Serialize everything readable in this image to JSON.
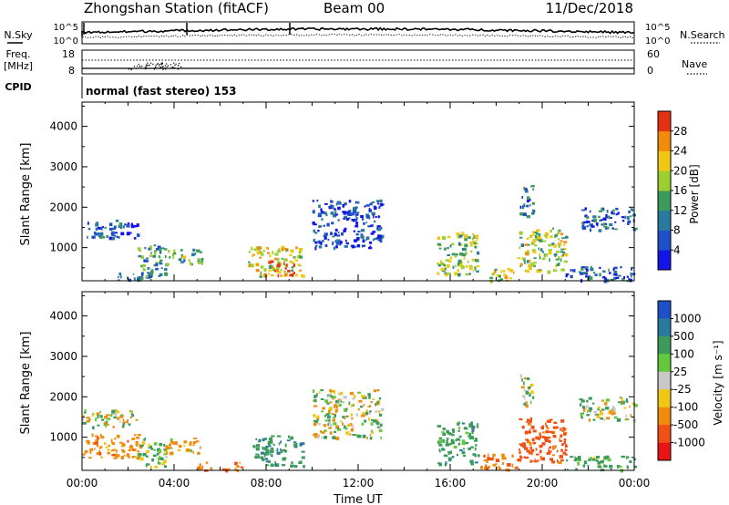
{
  "header": {
    "title": "Zhongshan Station (fitACF)",
    "beam": "Beam 00",
    "date": "11/Dec/2018"
  },
  "noise_panel": {
    "left_label": "N.Sky",
    "right_label": "N.Search",
    "left_ticks": [
      "10^5",
      "10^0"
    ],
    "right_ticks": [
      "10^5",
      "10^0"
    ]
  },
  "freq_panel": {
    "left_label_1": "Freq.",
    "left_label_2": "[MHz]",
    "right_label": "Nave",
    "left_ticks": [
      "18",
      "8"
    ],
    "right_ticks": [
      "60",
      "0"
    ]
  },
  "cpid": {
    "label": "CPID",
    "text": "normal (fast stereo) 153"
  },
  "chart_data": [
    {
      "type": "heatmap",
      "quantity": "power",
      "ylabel": "Slant Range [km]",
      "xlabel": "",
      "xlim": [
        0,
        24
      ],
      "ylim": [
        180,
        4600
      ],
      "x_ticks": [
        "00:00",
        "04:00",
        "08:00",
        "12:00",
        "16:00",
        "20:00",
        "00:00"
      ],
      "y_ticks": [
        1000,
        2000,
        3000,
        4000
      ],
      "colorbar": {
        "label": "Power [dB]",
        "range": [
          0,
          32
        ],
        "ticks": [
          "4",
          "8",
          "12",
          "16",
          "20",
          "24",
          "28"
        ],
        "colors": [
          "#1414e6",
          "#1e50c8",
          "#2a7a9e",
          "#3c9a5a",
          "#9ecf32",
          "#f0c814",
          "#f08c0a",
          "#e63214"
        ]
      },
      "echo_regions": [
        {
          "t": [
            0.0,
            2.4
          ],
          "r": [
            1250,
            1700
          ],
          "v": 7
        },
        {
          "t": [
            2.4,
            3.6
          ],
          "r": [
            200,
            1100
          ],
          "v": 12
        },
        {
          "t": [
            3.6,
            5.2
          ],
          "r": [
            600,
            1000
          ],
          "v": 14
        },
        {
          "t": [
            1.5,
            3.0
          ],
          "r": [
            200,
            400
          ],
          "v": 10
        },
        {
          "t": [
            7.2,
            9.6
          ],
          "r": [
            300,
            1050
          ],
          "v": 20
        },
        {
          "t": [
            8.0,
            9.2
          ],
          "r": [
            300,
            700
          ],
          "v": 27
        },
        {
          "t": [
            10.0,
            13.0
          ],
          "r": [
            1000,
            2200
          ],
          "v": 5
        },
        {
          "t": [
            15.4,
            17.2
          ],
          "r": [
            350,
            1400
          ],
          "v": 17
        },
        {
          "t": [
            17.6,
            18.8
          ],
          "r": [
            200,
            500
          ],
          "v": 22
        },
        {
          "t": [
            18.9,
            21.0
          ],
          "r": [
            400,
            1500
          ],
          "v": 18
        },
        {
          "t": [
            19.0,
            19.6
          ],
          "r": [
            1800,
            2600
          ],
          "v": 9
        },
        {
          "t": [
            21.6,
            24.0
          ],
          "r": [
            1450,
            2000
          ],
          "v": 8
        },
        {
          "t": [
            21.0,
            24.0
          ],
          "r": [
            200,
            550
          ],
          "v": 7
        }
      ]
    },
    {
      "type": "heatmap",
      "quantity": "velocity",
      "ylabel": "Slant Range [km]",
      "xlabel": "Time UT",
      "xlim": [
        0,
        24
      ],
      "ylim": [
        180,
        4600
      ],
      "x_ticks": [
        "00:00",
        "04:00",
        "08:00",
        "12:00",
        "16:00",
        "20:00",
        "00:00"
      ],
      "y_ticks": [
        1000,
        2000,
        3000,
        4000
      ],
      "colorbar": {
        "label": "Velocity [m s⁻¹]",
        "ticks": [
          "1000",
          "500",
          "100",
          "25",
          "-25",
          "-100",
          "-500",
          "-1000"
        ],
        "colors": [
          "#1e50c8",
          "#2a7a9e",
          "#3c9a5a",
          "#64c83c",
          "#c8c8c8",
          "#f0c814",
          "#f08c0a",
          "#f05014",
          "#e61414"
        ]
      },
      "echo_regions": [
        {
          "t": [
            0.0,
            2.4
          ],
          "r": [
            1250,
            1700
          ],
          "v": 25
        },
        {
          "t": [
            0.0,
            2.5
          ],
          "r": [
            500,
            1100
          ],
          "v": -300
        },
        {
          "t": [
            2.4,
            3.6
          ],
          "r": [
            250,
            1000
          ],
          "v": 150
        },
        {
          "t": [
            3.6,
            5.2
          ],
          "r": [
            600,
            1000
          ],
          "v": -200
        },
        {
          "t": [
            5.0,
            7.0
          ],
          "r": [
            200,
            400
          ],
          "v": -400
        },
        {
          "t": [
            7.4,
            9.6
          ],
          "r": [
            300,
            1050
          ],
          "v": 400
        },
        {
          "t": [
            10.0,
            13.0
          ],
          "r": [
            1000,
            2200
          ],
          "v": 0
        },
        {
          "t": [
            15.4,
            17.2
          ],
          "r": [
            350,
            1400
          ],
          "v": 300
        },
        {
          "t": [
            17.2,
            19.0
          ],
          "r": [
            200,
            600
          ],
          "v": -400
        },
        {
          "t": [
            18.9,
            21.0
          ],
          "r": [
            400,
            1500
          ],
          "v": -700
        },
        {
          "t": [
            19.0,
            19.6
          ],
          "r": [
            1800,
            2600
          ],
          "v": 0
        },
        {
          "t": [
            21.6,
            24.0
          ],
          "r": [
            1450,
            2000
          ],
          "v": 0
        },
        {
          "t": [
            21.0,
            24.0
          ],
          "r": [
            200,
            550
          ],
          "v": 200
        }
      ]
    }
  ]
}
